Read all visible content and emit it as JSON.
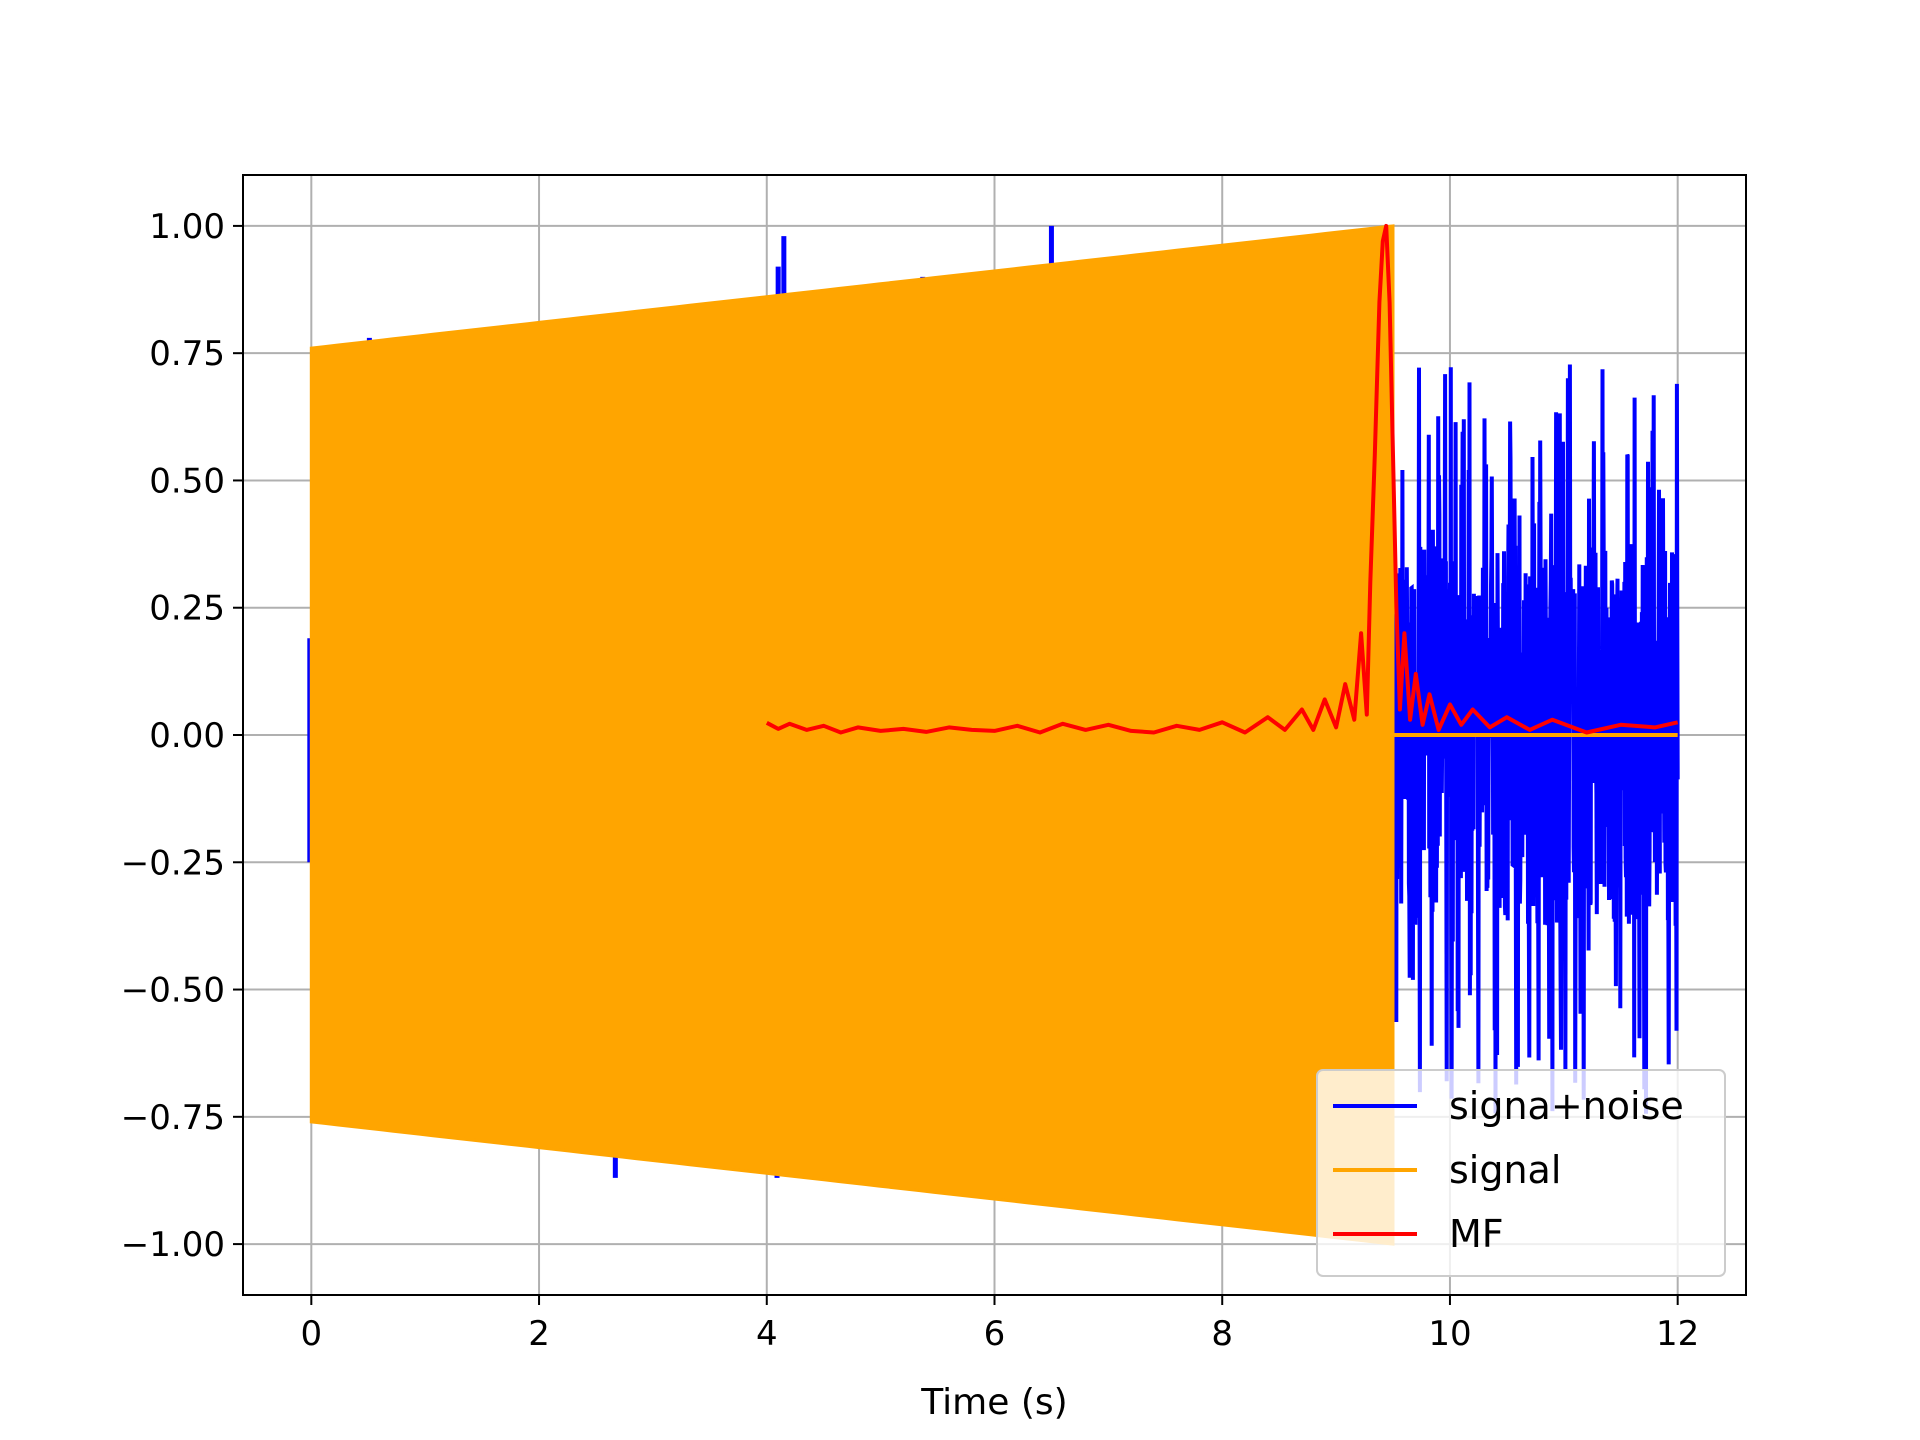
{
  "chart_data": {
    "type": "line",
    "title": "",
    "xlabel": "Time (s)",
    "ylabel": "",
    "xlim": [
      -0.6,
      12.6
    ],
    "ylim": [
      -1.1,
      1.1
    ],
    "grid": true,
    "legend_position": "lower-right",
    "x_ticks": [
      0,
      2,
      4,
      6,
      8,
      10,
      12
    ],
    "x_tick_labels": [
      "0",
      "2",
      "4",
      "6",
      "8",
      "10",
      "12"
    ],
    "y_ticks": [
      1.0,
      0.75,
      0.5,
      0.25,
      0.0,
      -0.25,
      -0.5,
      -0.75,
      -1.0
    ],
    "y_tick_labels": [
      "1.00",
      "0.75",
      "0.50",
      "0.25",
      "0.00",
      "−0.25",
      "−0.50",
      "−0.75",
      "−1.00"
    ],
    "series": [
      {
        "name": "signa+noise",
        "color": "#0000ff",
        "description_points": {
          "spikes": [
            {
              "x": 0.51,
              "y": 0.78
            },
            {
              "x": 1.57,
              "y": 0.8
            },
            {
              "x": 2.32,
              "y": 0.8
            },
            {
              "x": 4.1,
              "y": 0.92
            },
            {
              "x": 4.15,
              "y": 0.98
            },
            {
              "x": 5.37,
              "y": 0.9
            },
            {
              "x": 6.5,
              "y": 1.0
            },
            {
              "x": 2.32,
              "y": -0.82
            },
            {
              "x": 2.67,
              "y": -0.87
            },
            {
              "x": 4.09,
              "y": -0.87
            }
          ],
          "noise_region_x": [
            9.5,
            12.0
          ],
          "noise_region_upper_peaks": [
            0.5,
            0.55,
            0.68,
            0.75,
            0.68,
            0.6,
            0.55
          ],
          "noise_region_lower_peaks": [
            -0.55,
            -0.62,
            -0.68,
            -0.72,
            -0.66,
            -0.58,
            -0.7
          ]
        }
      },
      {
        "name": "signal",
        "color": "#ffa500",
        "envelope_x": [
          0.0,
          9.5
        ],
        "envelope_start": 0.76,
        "envelope_end": 1.0,
        "zero_after": [
          9.5,
          12.0
        ]
      },
      {
        "name": "MF",
        "color": "#ff0000",
        "x": [
          4.0,
          4.1,
          4.2,
          4.35,
          4.5,
          4.65,
          4.8,
          5.0,
          5.2,
          5.4,
          5.6,
          5.8,
          6.0,
          6.2,
          6.4,
          6.6,
          6.8,
          7.0,
          7.2,
          7.4,
          7.6,
          7.8,
          8.0,
          8.2,
          8.4,
          8.55,
          8.7,
          8.8,
          8.9,
          9.0,
          9.08,
          9.16,
          9.22,
          9.27,
          9.3,
          9.34,
          9.38,
          9.41,
          9.44,
          9.47,
          9.5,
          9.53,
          9.56,
          9.6,
          9.65,
          9.7,
          9.76,
          9.82,
          9.9,
          10.0,
          10.1,
          10.2,
          10.35,
          10.5,
          10.7,
          10.9,
          11.2,
          11.5,
          11.8,
          12.0
        ],
        "y": [
          0.024,
          0.012,
          0.022,
          0.01,
          0.018,
          0.005,
          0.015,
          0.008,
          0.012,
          0.006,
          0.015,
          0.01,
          0.008,
          0.018,
          0.005,
          0.022,
          0.01,
          0.02,
          0.008,
          0.005,
          0.018,
          0.01,
          0.025,
          0.005,
          0.035,
          0.01,
          0.05,
          0.01,
          0.07,
          0.015,
          0.1,
          0.03,
          0.2,
          0.04,
          0.3,
          0.55,
          0.85,
          0.97,
          1.0,
          0.85,
          0.55,
          0.25,
          0.05,
          0.2,
          0.03,
          0.12,
          0.02,
          0.08,
          0.01,
          0.06,
          0.02,
          0.05,
          0.015,
          0.035,
          0.01,
          0.03,
          0.005,
          0.02,
          0.015,
          0.025
        ]
      }
    ]
  }
}
